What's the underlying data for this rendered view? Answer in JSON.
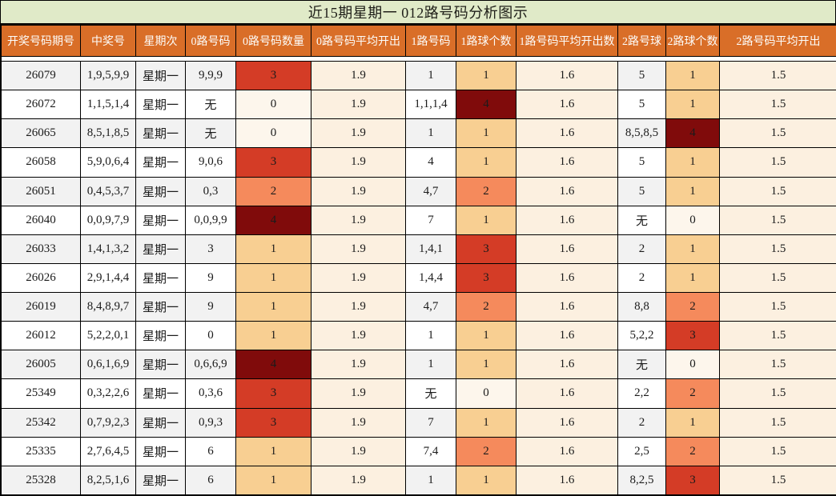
{
  "title": "近15期星期一 012路号码分析图示",
  "colors": {
    "title_bg": "#e0eac8",
    "header_bg": "#d96e28",
    "header_text": "#ffffff",
    "row_base": "#ffffff",
    "row_alt": "#f2f2f2",
    "avg_column_bg": "#fcf0e0",
    "heat_0": "#fdf6ec",
    "heat_1": "#f8cf92",
    "heat_2": "#f58a5c",
    "heat_3": "#d43c26",
    "heat_4": "#800b0b",
    "grid_line": "#000000"
  },
  "chart_data": {
    "type": "table",
    "title": "近15期星期一 012路号码分析图示",
    "columns": [
      "开奖号码期号",
      "中奖号",
      "星期次",
      "0路号码",
      "0路号码数量",
      "0路号码平均开出",
      "1路号码",
      "1路球个数",
      "1路号码平均开出数",
      "2路号球",
      "2路球个数",
      "2路号码平均开出"
    ],
    "rows": [
      [
        "26079",
        "1,9,5,9,9",
        "星期一",
        "9,9,9",
        "3",
        "1.9",
        "1",
        "1",
        "1.6",
        "5",
        "1",
        "1.5"
      ],
      [
        "26072",
        "1,1,5,1,4",
        "星期一",
        "无",
        "0",
        "1.9",
        "1,1,1,4",
        "4",
        "1.6",
        "5",
        "1",
        "1.5"
      ],
      [
        "26065",
        "8,5,1,8,5",
        "星期一",
        "无",
        "0",
        "1.9",
        "1",
        "1",
        "1.6",
        "8,5,8,5",
        "4",
        "1.5"
      ],
      [
        "26058",
        "5,9,0,6,4",
        "星期一",
        "9,0,6",
        "3",
        "1.9",
        "4",
        "1",
        "1.6",
        "5",
        "1",
        "1.5"
      ],
      [
        "26051",
        "0,4,5,3,7",
        "星期一",
        "0,3",
        "2",
        "1.9",
        "4,7",
        "2",
        "1.6",
        "5",
        "1",
        "1.5"
      ],
      [
        "26040",
        "0,0,9,7,9",
        "星期一",
        "0,0,9,9",
        "4",
        "1.9",
        "7",
        "1",
        "1.6",
        "无",
        "0",
        "1.5"
      ],
      [
        "26033",
        "1,4,1,3,2",
        "星期一",
        "3",
        "1",
        "1.9",
        "1,4,1",
        "3",
        "1.6",
        "2",
        "1",
        "1.5"
      ],
      [
        "26026",
        "2,9,1,4,4",
        "星期一",
        "9",
        "1",
        "1.9",
        "1,4,4",
        "3",
        "1.6",
        "2",
        "1",
        "1.5"
      ],
      [
        "26019",
        "8,4,8,9,7",
        "星期一",
        "9",
        "1",
        "1.9",
        "4,7",
        "2",
        "1.6",
        "8,8",
        "2",
        "1.5"
      ],
      [
        "26012",
        "5,2,2,0,1",
        "星期一",
        "0",
        "1",
        "1.9",
        "1",
        "1",
        "1.6",
        "5,2,2",
        "3",
        "1.5"
      ],
      [
        "26005",
        "0,6,1,6,9",
        "星期一",
        "0,6,6,9",
        "4",
        "1.9",
        "1",
        "1",
        "1.6",
        "无",
        "0",
        "1.5"
      ],
      [
        "25349",
        "0,3,2,2,6",
        "星期一",
        "0,3,6",
        "3",
        "1.9",
        "无",
        "0",
        "1.6",
        "2,2",
        "2",
        "1.5"
      ],
      [
        "25342",
        "0,7,9,2,3",
        "星期一",
        "0,9,3",
        "3",
        "1.9",
        "7",
        "1",
        "1.6",
        "2",
        "1",
        "1.5"
      ],
      [
        "25335",
        "2,7,6,4,5",
        "星期一",
        "6",
        "1",
        "1.9",
        "7,4",
        "2",
        "1.6",
        "2,5",
        "2",
        "1.5"
      ],
      [
        "25328",
        "8,2,5,1,6",
        "星期一",
        "6",
        "1",
        "1.9",
        "1",
        "1",
        "1.6",
        "8,2,5",
        "3",
        "1.5"
      ]
    ],
    "heat_scale_note": "count cells colored by value: 0=cream, 1=light-orange, 2=salmon, 3=red, 4=dark-maroon"
  }
}
